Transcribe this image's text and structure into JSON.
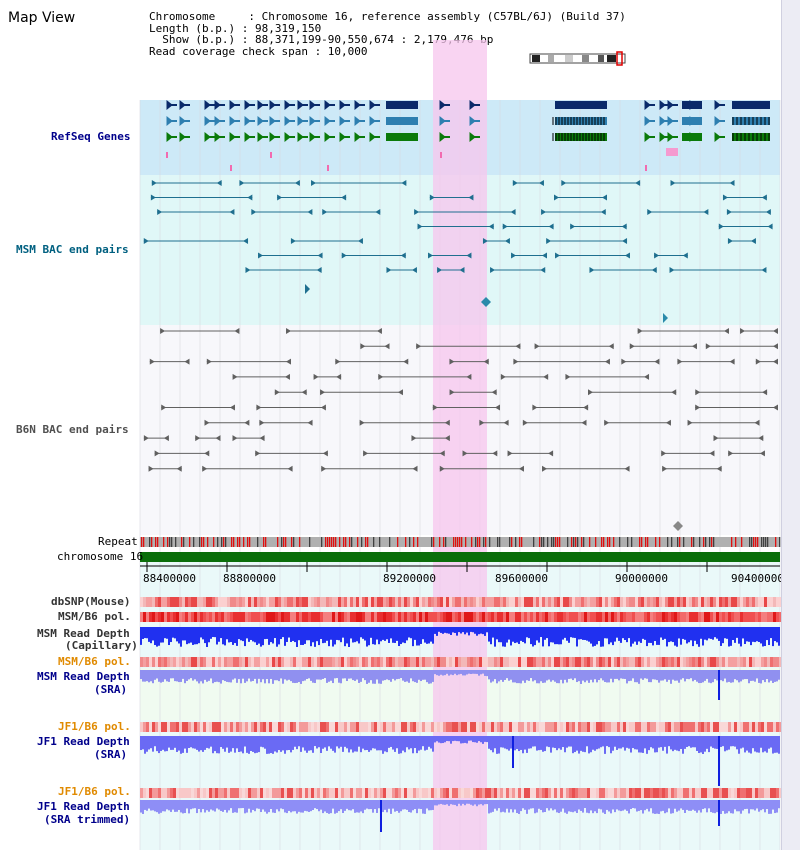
{
  "header": {
    "title": "Map View",
    "info_lines": [
      "Chromosome     : Chromosome 16, reference assembly (C57BL/6J) (Build 37)",
      "Length (b.p.) : 98,319,150",
      "  Show (b.p.) : 88,371,199-90,550,674 : 2,179,476 bp",
      "Read coverage check span : 10,000"
    ]
  },
  "tracks": {
    "refseq": "RefSeq Genes",
    "msm_bac": "MSM BAC end pairs",
    "b6n_bac": "B6N BAC end pairs",
    "repeat": "Repeat",
    "chromosome": "chromosome 16",
    "dbsnp": "dbSNP(Mouse)",
    "msm_b6_pol_1": "MSM/B6 pol.",
    "msm_read_depth_cap_1": "MSM Read Depth",
    "msm_read_depth_cap_2": "(Capillary)",
    "msm_b6_pol_2": "MSM/B6 pol.",
    "msm_read_depth_sra_1": "MSM Read Depth",
    "msm_read_depth_sra_2": "(SRA)",
    "jf1_b6_pol_1": "JF1/B6 pol.",
    "jf1_read_depth_sra_1": "JF1 Read Depth",
    "jf1_read_depth_sra_2": "(SRA)",
    "jf1_b6_pol_2": "JF1/B6 pol.",
    "jf1_read_depth_trim_1": "JF1 Read Depth",
    "jf1_read_depth_trim_2": "(SRA trimmed)"
  },
  "axis": {
    "ticks": [
      "88400000",
      "88800000",
      "89200000",
      "89600000",
      "90000000",
      "90400000"
    ]
  },
  "colors": {
    "refseq_bg": "#cde9f7",
    "msm_bg": "#e0f7f7",
    "highlight": "#f7d0f0",
    "chromosome": "#0a6e0a",
    "read_depth_dark": "#1a2cf0",
    "read_depth_light": "#8a8af5"
  }
}
